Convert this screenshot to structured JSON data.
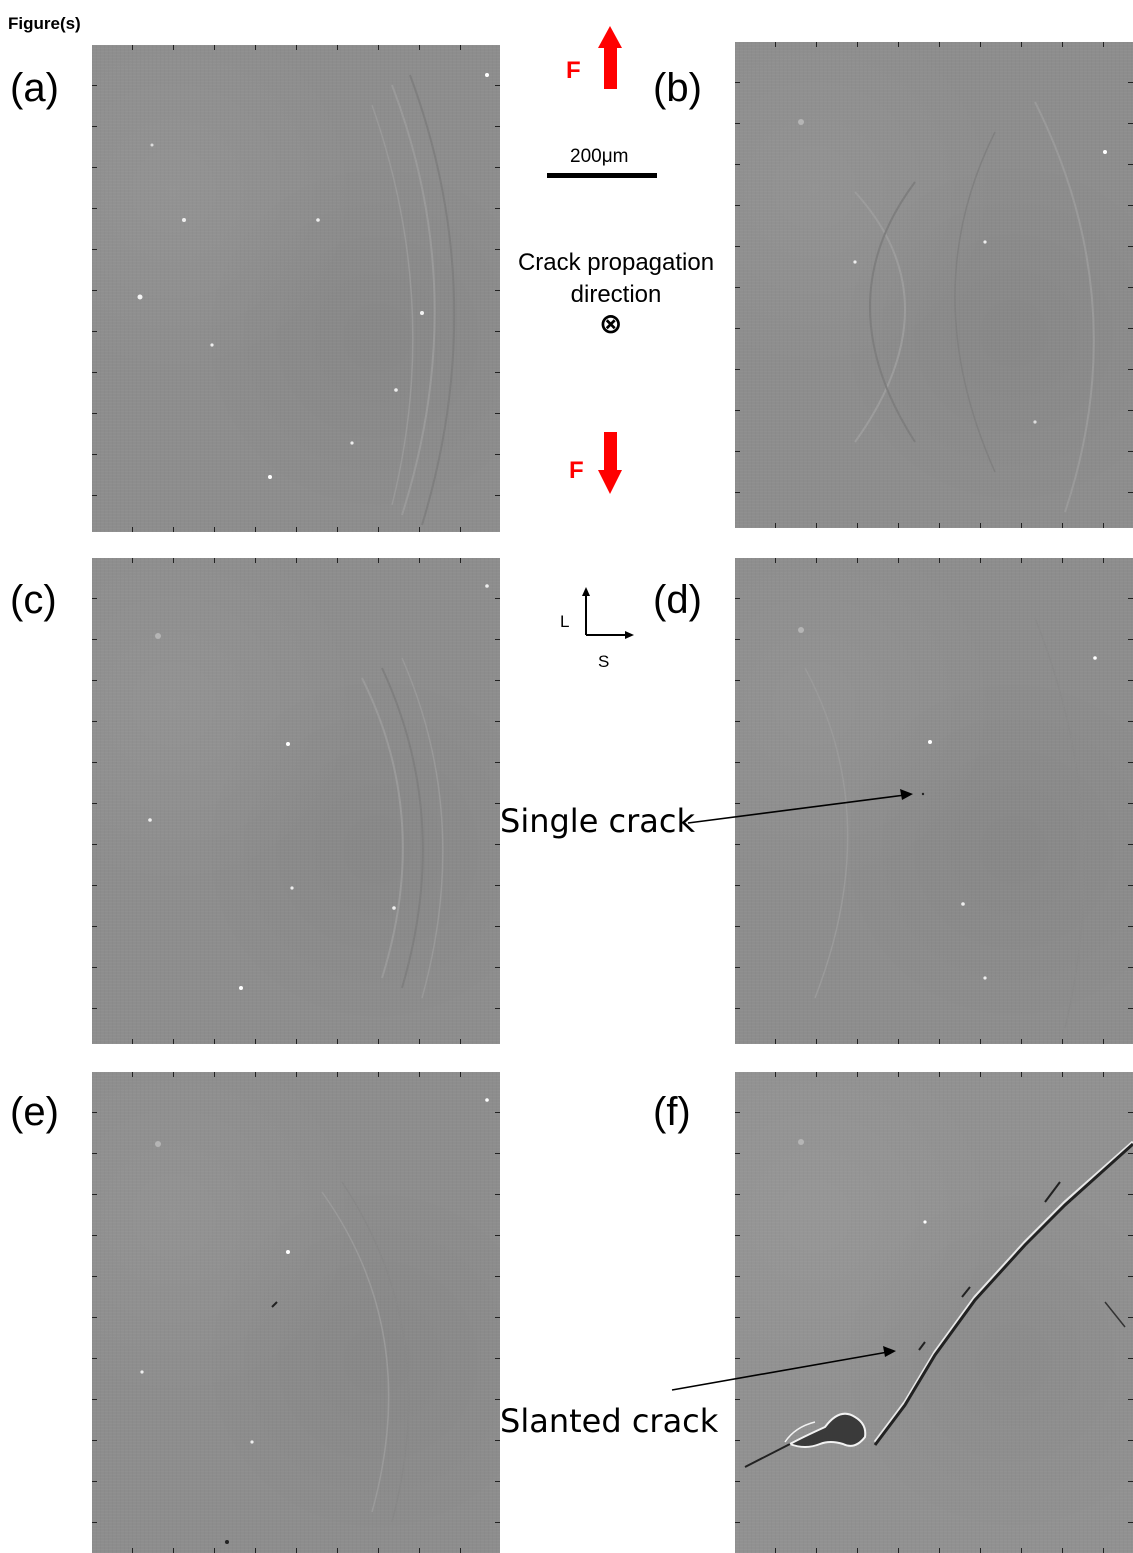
{
  "heading": "Figure(s)",
  "panels": [
    {
      "label": "(a)"
    },
    {
      "label": "(b)"
    },
    {
      "label": "(c)"
    },
    {
      "label": "(d)"
    },
    {
      "label": "(e)"
    },
    {
      "label": "(f)"
    }
  ],
  "force": {
    "label": "F",
    "color": "#ff0000"
  },
  "scale_bar": {
    "text": "200μm"
  },
  "crack_direction": {
    "line1": "Crack propagation",
    "line2": "direction",
    "symbol": "⊗"
  },
  "axes": {
    "vertical": "L",
    "horizontal": "S"
  },
  "annotations": {
    "single_crack": "Single crack",
    "slanted_crack": "Slanted crack"
  }
}
